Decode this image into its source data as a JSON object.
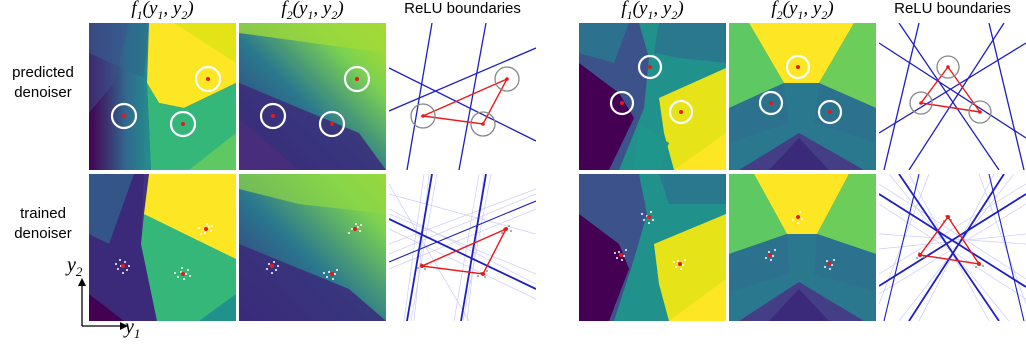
{
  "column_titles": {
    "f1": "f1(y1, y2)",
    "f2": "f2(y1, y2)",
    "relu": "ReLU boundaries"
  },
  "row_labels": {
    "predicted": "predicted\ndenoiser",
    "trained": "trained\ndenoiser"
  },
  "axes": {
    "y1": "y1",
    "y2": "y2"
  },
  "colors": {
    "viridis_dark": "#440154",
    "viridis_blue": "#3b528b",
    "viridis_teal": "#21918c",
    "viridis_green": "#5ec962",
    "viridis_yellow": "#fde725",
    "boundary": "#1f1fbf",
    "triangle": "#e8191a",
    "circle_on_map": "#ffffff",
    "circle_on_relu": "#888888"
  }
}
